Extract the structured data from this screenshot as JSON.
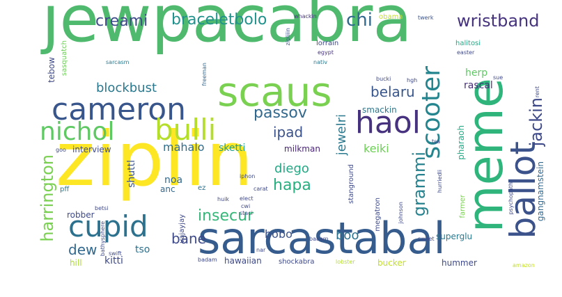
{
  "word_cloud": {
    "words": [
      {
        "id": "jewpacabra",
        "text": "jewpacabra",
        "color": "#4fba6e"
      },
      {
        "id": "ziplin",
        "text": "ziplin",
        "color": "#fde725"
      },
      {
        "id": "sarcastabal",
        "text": "sarcastabal",
        "color": "#365c8d"
      },
      {
        "id": "scaus",
        "text": "scaus",
        "color": "#7ad151"
      },
      {
        "id": "meme",
        "text": "meme",
        "color": "#2fb47c"
      },
      {
        "id": "cameron",
        "text": "cameron",
        "color": "#39568c"
      },
      {
        "id": "ballot",
        "text": "ballot",
        "color": "#3b528b"
      },
      {
        "id": "haol",
        "text": "haol",
        "color": "#46327e"
      },
      {
        "id": "cupid",
        "text": "cupid",
        "color": "#2c718e"
      },
      {
        "id": "scooter",
        "text": "scooter",
        "color": "#25858e"
      },
      {
        "id": "nichol",
        "text": "nichol",
        "color": "#5ec962"
      },
      {
        "id": "bulli",
        "text": "bulli",
        "color": "#b5de2b"
      },
      {
        "id": "harrington",
        "text": "harrington",
        "color": "#7ad151"
      },
      {
        "id": "braceletbolo",
        "text": "braceletbolo",
        "color": "#21918c"
      },
      {
        "id": "creami",
        "text": "creami",
        "color": "#3e4a89"
      },
      {
        "id": "chi",
        "text": "chi",
        "color": "#31688e"
      },
      {
        "id": "wristband",
        "text": "wristband",
        "color": "#46337e"
      },
      {
        "id": "blockbust",
        "text": "blockbust",
        "color": "#2a788e"
      },
      {
        "id": "belaru",
        "text": "belaru",
        "color": "#39568c"
      },
      {
        "id": "passov",
        "text": "passov",
        "color": "#31688e"
      },
      {
        "id": "jackin",
        "text": "jackin",
        "color": "#3e4989"
      },
      {
        "id": "ipad",
        "text": "ipad",
        "color": "#3b528b"
      },
      {
        "id": "jewelri",
        "text": "jewelri",
        "color": "#2a788e"
      },
      {
        "id": "grammi",
        "text": "grammi",
        "color": "#26828e"
      },
      {
        "id": "gangnamstein",
        "text": "gangnamstein",
        "color": "#31688e"
      },
      {
        "id": "insecur",
        "text": "insecur",
        "color": "#35b779"
      },
      {
        "id": "hapa",
        "text": "hapa",
        "color": "#29af7f"
      },
      {
        "id": "diego",
        "text": "diego",
        "color": "#22a884"
      },
      {
        "id": "bane",
        "text": "bane",
        "color": "#3e4a89"
      },
      {
        "id": "bobo",
        "text": "bobo",
        "color": "#3b528b"
      },
      {
        "id": "boo",
        "text": "boo",
        "color": "#2c728e"
      },
      {
        "id": "dew",
        "text": "dew",
        "color": "#31688e"
      },
      {
        "id": "keiki",
        "text": "keiki",
        "color": "#6ece58"
      },
      {
        "id": "mahalo",
        "text": "mahalo",
        "color": "#2e6e8e"
      },
      {
        "id": "skett",
        "text": "sketti",
        "color": "#1f9e89"
      },
      {
        "id": "interview",
        "text": "interview",
        "color": "#3e4989"
      },
      {
        "id": "milkman",
        "text": "milkman",
        "color": "#482475"
      },
      {
        "id": "herp",
        "text": "herp",
        "color": "#5ec962"
      },
      {
        "id": "rascal",
        "text": "rascal",
        "color": "#472d7b"
      },
      {
        "id": "smackin",
        "text": "smackin",
        "color": "#2a788e"
      },
      {
        "id": "shuttl",
        "text": "shuttl",
        "color": "#3b528b"
      },
      {
        "id": "noa",
        "text": "noa",
        "color": "#31688e"
      },
      {
        "id": "anc",
        "text": "anc",
        "color": "#31688e"
      },
      {
        "id": "robber",
        "text": "robber",
        "color": "#3e4989"
      },
      {
        "id": "kitti",
        "text": "kitti",
        "color": "#3e4989"
      },
      {
        "id": "tso",
        "text": "tso",
        "color": "#2c718e"
      },
      {
        "id": "hill",
        "text": "hill",
        "color": "#addc30"
      },
      {
        "id": "hawaiian",
        "text": "hawaiian",
        "color": "#3e4989"
      },
      {
        "id": "shockabra",
        "text": "shockabra",
        "color": "#3e4989"
      },
      {
        "id": "bucker",
        "text": "bucker",
        "color": "#c2df23"
      },
      {
        "id": "hummer",
        "text": "hummer",
        "color": "#3e4989"
      },
      {
        "id": "superglu",
        "text": "superglu",
        "color": "#2a788e"
      },
      {
        "id": "megatron",
        "text": "megatron",
        "color": "#3e4989"
      },
      {
        "id": "farmer",
        "text": "farmer",
        "color": "#7ad151"
      },
      {
        "id": "pharaoh",
        "text": "pharaoh",
        "color": "#22a884"
      },
      {
        "id": "tebow",
        "text": "tebow",
        "color": "#3e4989"
      },
      {
        "id": "sasquatch",
        "text": "sasquatch",
        "color": "#6ece58"
      },
      {
        "id": "sarcasm",
        "text": "sarcasm",
        "color": "#2a788e"
      },
      {
        "id": "freeman",
        "text": "freeman",
        "color": "#31688e"
      },
      {
        "id": "zipliiin",
        "text": "zipliiin",
        "color": "#3b528b"
      },
      {
        "id": "whackin",
        "text": "whackin",
        "color": "#46337e"
      },
      {
        "id": "obama",
        "text": "obama",
        "color": "#c2df23"
      },
      {
        "id": "twerk",
        "text": "twerk",
        "color": "#3b528b"
      },
      {
        "id": "lorrain",
        "text": "lorrain",
        "color": "#3e4989"
      },
      {
        "id": "egypt",
        "text": "egypt",
        "color": "#46337e"
      },
      {
        "id": "nativ",
        "text": "nativ",
        "color": "#2a788e"
      },
      {
        "id": "halitosi",
        "text": "halitosi",
        "color": "#22a884"
      },
      {
        "id": "easter",
        "text": "easter",
        "color": "#3e4989"
      },
      {
        "id": "sue",
        "text": "sue",
        "color": "#3e4989"
      },
      {
        "id": "rent",
        "text": "rent",
        "color": "#3e4989"
      },
      {
        "id": "hgh",
        "text": "hgh",
        "color": "#3e4989"
      },
      {
        "id": "bucki",
        "text": "bucki",
        "color": "#3e4989"
      },
      {
        "id": "tsa",
        "text": "tsa",
        "color": "#3e4989"
      },
      {
        "id": "pff",
        "text": "pff",
        "color": "#2a788e"
      },
      {
        "id": "goo",
        "text": "goo",
        "color": "#3e4989"
      },
      {
        "id": "carat",
        "text": "carat",
        "color": "#3e4989"
      },
      {
        "id": "ez",
        "text": "ez",
        "color": "#2c718e"
      },
      {
        "id": "iphon",
        "text": "iphon",
        "color": "#3e4989"
      },
      {
        "id": "stanground",
        "text": "stanground",
        "color": "#3e4989"
      },
      {
        "id": "elect",
        "text": "elect",
        "color": "#3e4989"
      },
      {
        "id": "cwi",
        "text": "cwi",
        "color": "#3e4989"
      },
      {
        "id": "staci",
        "text": "staci",
        "color": "#3e4989"
      },
      {
        "id": "huik",
        "text": "huik",
        "color": "#3e4989"
      },
      {
        "id": "betsi",
        "text": "betsi",
        "color": "#3e4989"
      },
      {
        "id": "swift",
        "text": "swift",
        "color": "#3e4989"
      },
      {
        "id": "vajayjay",
        "text": "vajayjay",
        "color": "#3e4989"
      },
      {
        "id": "bathysphere",
        "text": "bathysphere",
        "color": "#3e4989"
      },
      {
        "id": "badam",
        "text": "badam",
        "color": "#3e4989"
      },
      {
        "id": "nar",
        "text": "nar",
        "color": "#3e4989"
      },
      {
        "id": "baaam",
        "text": "baaam",
        "color": "#3e4989"
      },
      {
        "id": "johnson",
        "text": "johnson",
        "color": "#3e4989"
      },
      {
        "id": "lobster",
        "text": "lobster",
        "color": "#b5de2b"
      },
      {
        "id": "hurriedli",
        "text": "hurriedli",
        "color": "#3e4989"
      },
      {
        "id": "psychopath",
        "text": "psychopath",
        "color": "#3e4989"
      },
      {
        "id": "amazon",
        "text": "amazon",
        "color": "#c2df23"
      },
      {
        "id": "sweet",
        "text": "sweet",
        "color": "#3e4989"
      }
    ]
  }
}
